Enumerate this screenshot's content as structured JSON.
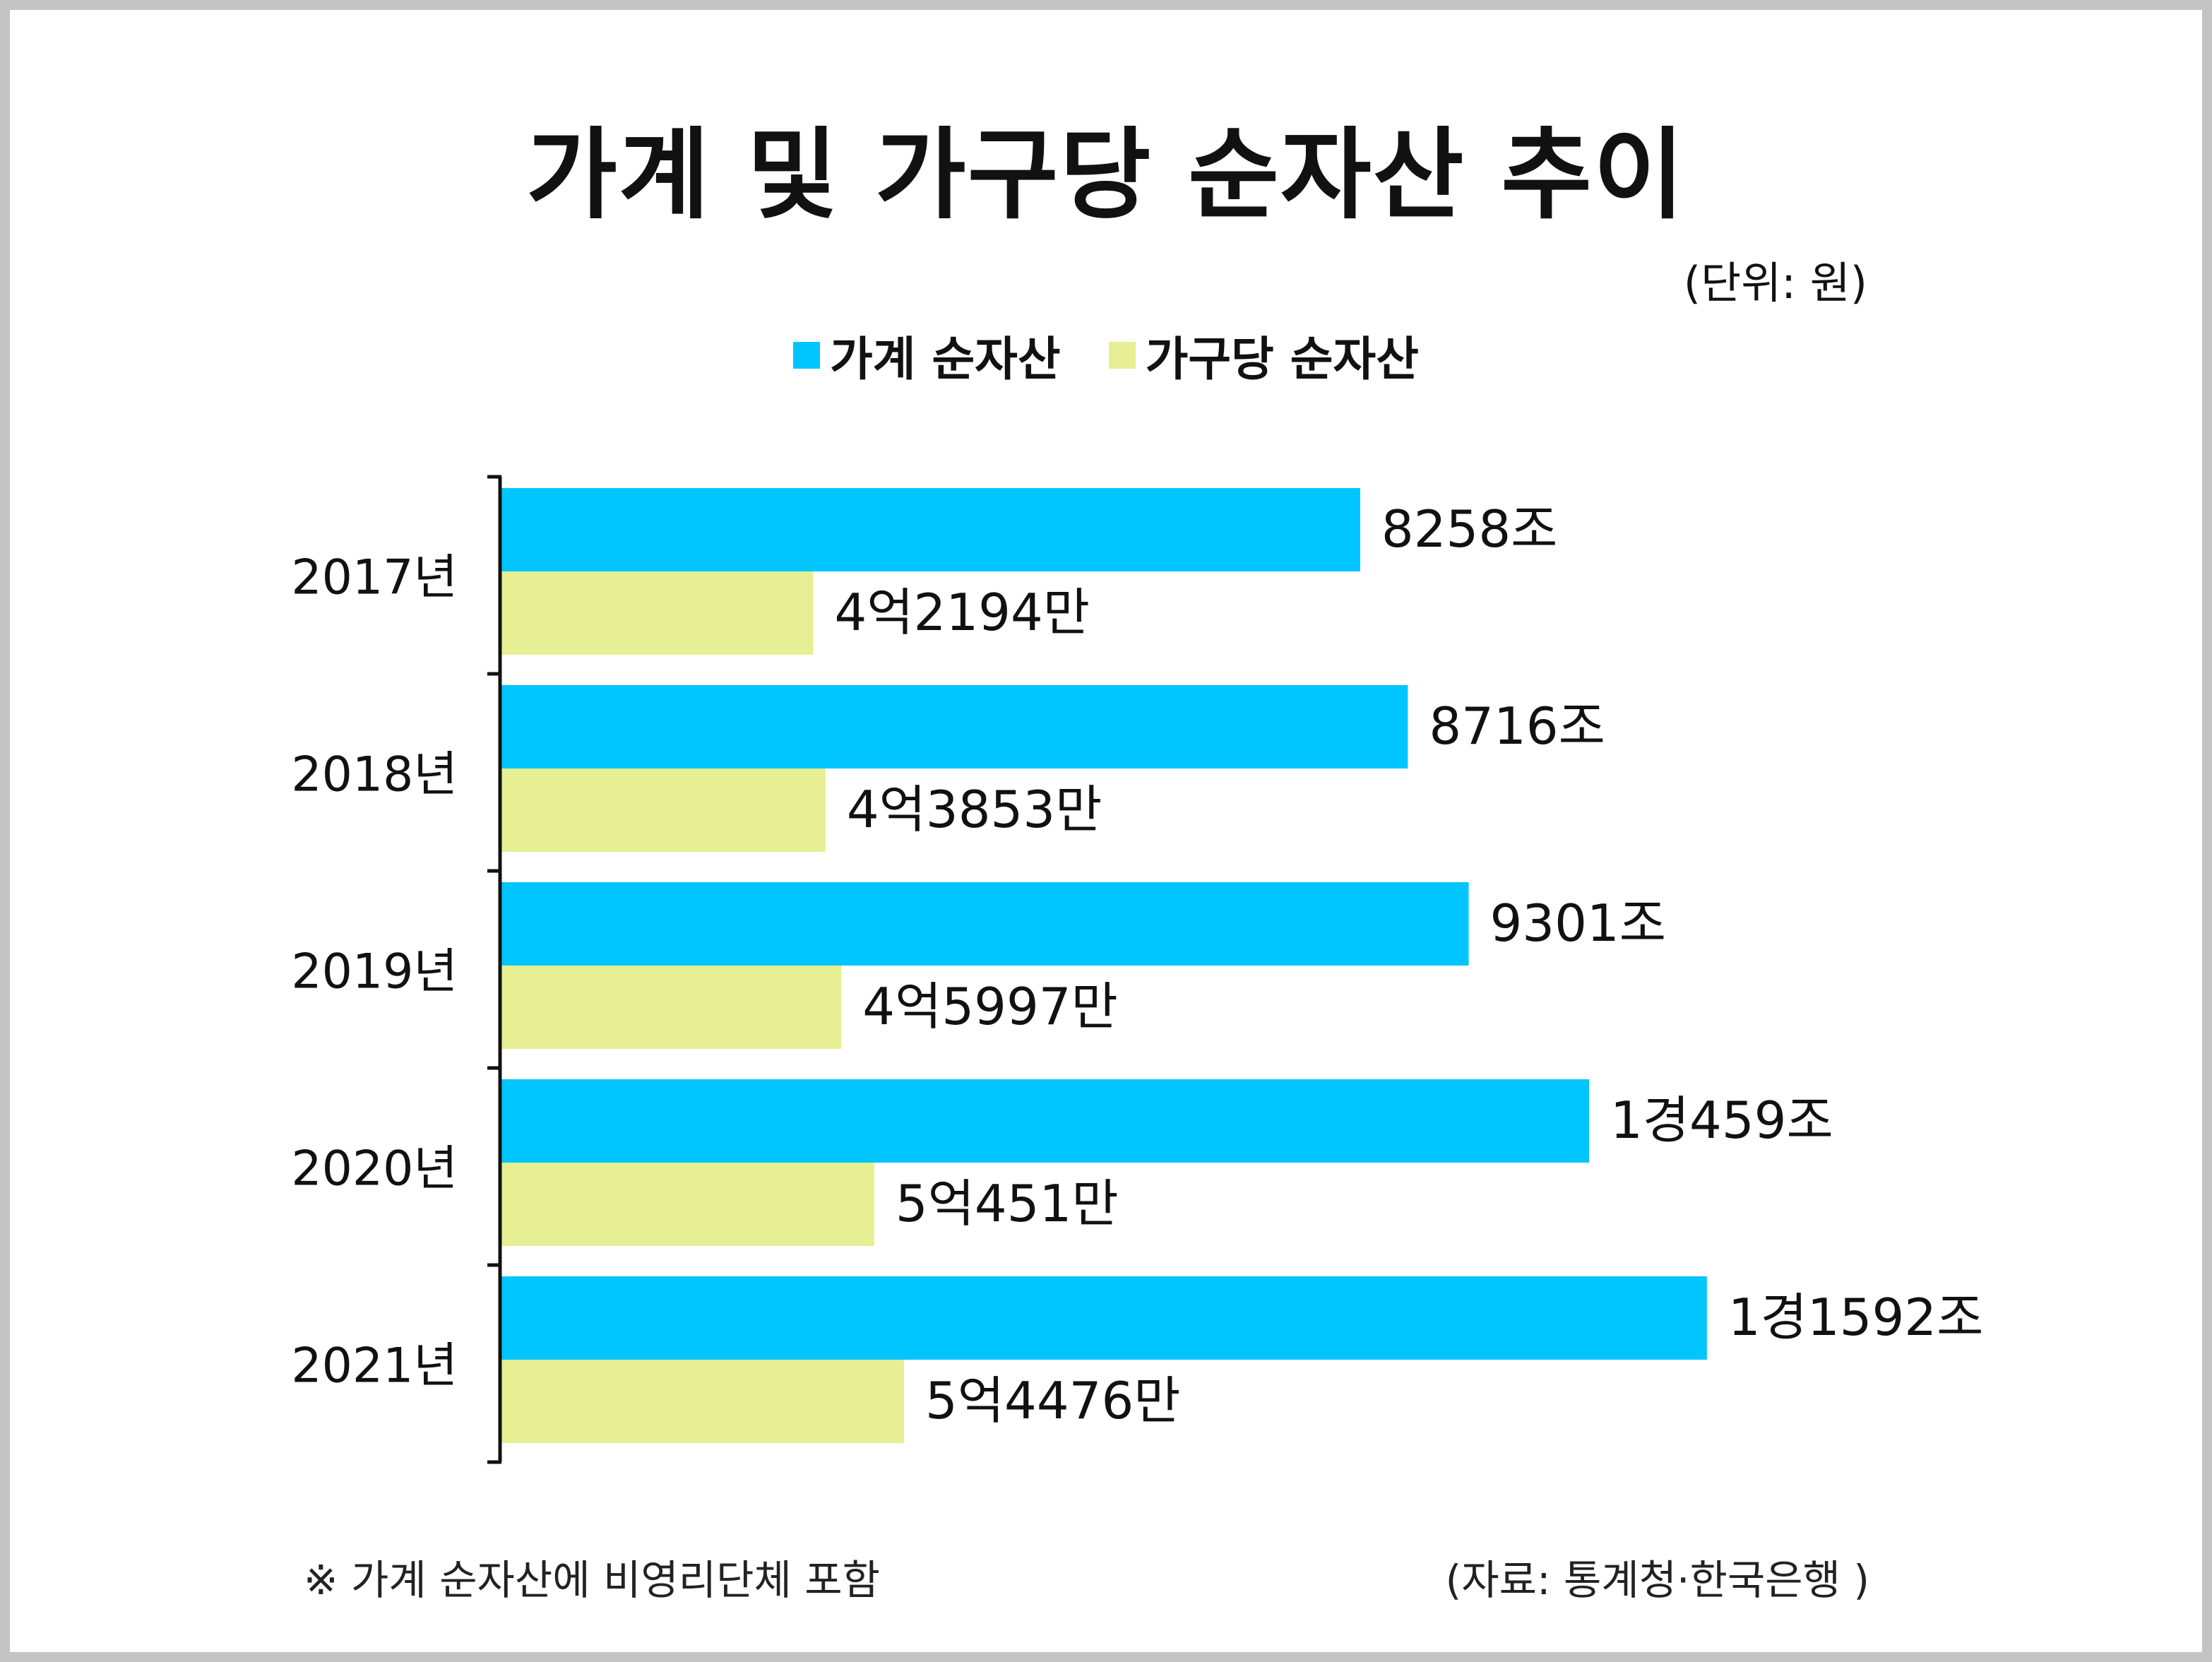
{
  "title": "가계 및 가구당 순자산 추이",
  "unit_label": "(단위: 원)",
  "note": "※ 가계 순자산에 비영리단체 포함",
  "source": "(자료: 통계청·한국은행 )",
  "colors": {
    "household": "#00c5ff",
    "per_household": "#e6ef93",
    "frame": "#c4c4c4",
    "axis": "#111111"
  },
  "chart_data": {
    "type": "bar",
    "orientation": "horizontal",
    "categories": [
      "2017년",
      "2018년",
      "2019년",
      "2020년",
      "2021년"
    ],
    "series": [
      {
        "name": "가계 순자산",
        "unit": "조 원",
        "values": [
          8258,
          8716,
          9301,
          10459,
          11592
        ],
        "labels": [
          "8258조",
          "8716조",
          "9301조",
          "1경459조",
          "1경1592조"
        ]
      },
      {
        "name": "가구당 순자산",
        "unit": "만 원",
        "values": [
          42194,
          43853,
          45997,
          50451,
          54476
        ],
        "labels": [
          "4억2194만",
          "4억3853만",
          "4억5997만",
          "5억451만",
          "5억4476만"
        ]
      }
    ],
    "legend_position": "top-center",
    "grid": false
  }
}
